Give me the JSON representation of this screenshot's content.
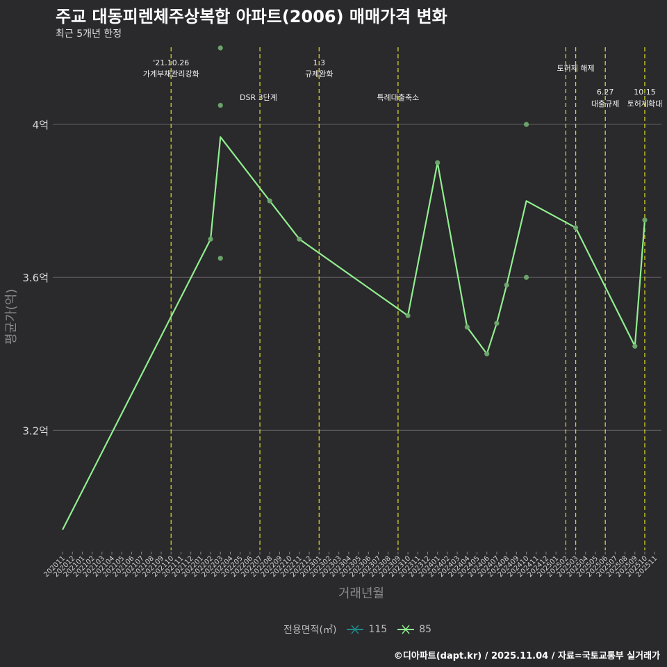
{
  "chart_data": {
    "type": "line",
    "title": "주교 대동피렌체주상복합 아파트(2006) 매매가격 변화",
    "subtitle": "최근 5개년 한정",
    "xlabel": "거래년월",
    "ylabel": "평균가(억)",
    "categories": [
      "202011",
      "202012",
      "202101",
      "202102",
      "202103",
      "202104",
      "202105",
      "202106",
      "202107",
      "202108",
      "202109",
      "202110",
      "202111",
      "202112",
      "202201",
      "202202",
      "202203",
      "202204",
      "202205",
      "202206",
      "202207",
      "202208",
      "202209",
      "202210",
      "202211",
      "202212",
      "202301",
      "202302",
      "202303",
      "202304",
      "202305",
      "202306",
      "202307",
      "202308",
      "202309",
      "202310",
      "202311",
      "202312",
      "202401",
      "202402",
      "202403",
      "202404",
      "202405",
      "202406",
      "202407",
      "202408",
      "202409",
      "202410",
      "202411",
      "202412",
      "202501",
      "202502",
      "202503",
      "202504",
      "202505",
      "202506",
      "202507",
      "202508",
      "202509",
      "202510",
      "202511"
    ],
    "yticks": [
      3.2,
      3.6,
      4.0
    ],
    "ytick_labels": [
      "3.2억",
      "3.6억",
      "4억"
    ],
    "ylim": [
      2.89,
      4.22
    ],
    "series": [
      {
        "name": "85",
        "color": "#90ee90",
        "line": [
          {
            "x": "202011",
            "y": 2.94
          },
          {
            "x": "202202",
            "y": 3.7
          },
          {
            "x": "202203",
            "y": 3.967
          },
          {
            "x": "202208",
            "y": 3.8
          },
          {
            "x": "202211",
            "y": 3.7
          },
          {
            "x": "202310",
            "y": 3.5
          },
          {
            "x": "202401",
            "y": 3.9
          },
          {
            "x": "202404",
            "y": 3.47
          },
          {
            "x": "202406",
            "y": 3.4
          },
          {
            "x": "202407",
            "y": 3.48
          },
          {
            "x": "202408",
            "y": 3.58
          },
          {
            "x": "202410",
            "y": 3.8
          },
          {
            "x": "202503",
            "y": 3.73
          },
          {
            "x": "202509",
            "y": 3.42
          },
          {
            "x": "202510",
            "y": 3.75
          }
        ],
        "points": [
          {
            "x": "202202",
            "y": 3.7
          },
          {
            "x": "202203",
            "y": 4.2
          },
          {
            "x": "202203",
            "y": 4.05
          },
          {
            "x": "202203",
            "y": 3.65
          },
          {
            "x": "202208",
            "y": 3.8
          },
          {
            "x": "202211",
            "y": 3.7
          },
          {
            "x": "202310",
            "y": 3.5
          },
          {
            "x": "202401",
            "y": 3.9
          },
          {
            "x": "202404",
            "y": 3.47
          },
          {
            "x": "202406",
            "y": 3.4
          },
          {
            "x": "202407",
            "y": 3.48
          },
          {
            "x": "202408",
            "y": 3.58
          },
          {
            "x": "202410",
            "y": 4.0
          },
          {
            "x": "202410",
            "y": 3.6
          },
          {
            "x": "202503",
            "y": 3.73
          },
          {
            "x": "202509",
            "y": 3.42
          },
          {
            "x": "202510",
            "y": 3.75
          }
        ]
      }
    ],
    "events": [
      {
        "x": "202110",
        "label_line1": "'21.10.26",
        "label_line2": "가계부채관리강화",
        "row": "top"
      },
      {
        "x": "202207",
        "label_line1": "DSR 3단계",
        "label_line2": "",
        "row": "side"
      },
      {
        "x": "202301",
        "label_line1": "1.3",
        "label_line2": "규제완화",
        "row": "top"
      },
      {
        "x": "202309",
        "label_line1": "특례대출축소",
        "label_line2": "",
        "row": "mid"
      },
      {
        "x": "202502",
        "label_line1": "",
        "label_line2": "",
        "row": "none"
      },
      {
        "x": "202503",
        "label_line1": "토허제 해제",
        "label_line2": "",
        "row": "upper"
      },
      {
        "x": "202506",
        "label_line1": "6.27",
        "label_line2": "대출규제",
        "row": "low"
      },
      {
        "x": "202510",
        "label_line1": "10.15",
        "label_line2": "토허제확대",
        "row": "low"
      }
    ],
    "legend": {
      "title": "전용면적(㎡)",
      "entries": [
        {
          "label": "115",
          "color": "#1f8a8a"
        },
        {
          "label": "85",
          "color": "#90ee90"
        }
      ]
    },
    "caption": "©디아파트(dapt.kr) / 2025.11.04 / 자료=국토교통부 실거래가"
  }
}
